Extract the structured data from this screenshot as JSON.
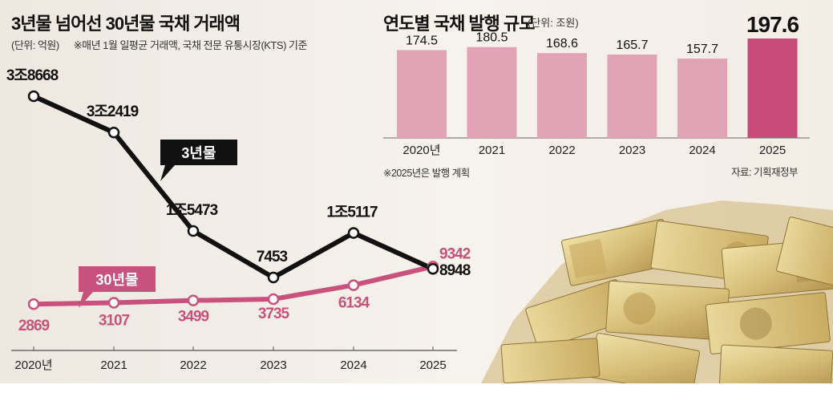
{
  "left_chart": {
    "title": "3년물 넘어선 30년물 국채 거래액",
    "unit_note": "(단위: 억원)",
    "basis_note": "※매년 1월 일평균 거래액, 국채 전문 유통시장(KTS) 기준"
  },
  "right_chart": {
    "title": "연도별 국채 발행 규모",
    "unit_note": "(단위: 조원)",
    "footnote": "※2025년은 발행 계획",
    "source": "자료: 기획재정부"
  },
  "colors": {
    "line_3yr": "#111111",
    "line_30yr": "#c8527d",
    "bar_normal": "#e2a3b6",
    "bar_highlight": "#c64b79"
  },
  "chart_data": [
    {
      "type": "line",
      "title": "3년물 넘어선 30년물 국채 거래액",
      "ylabel": "억원",
      "x": [
        "2020년",
        "2021",
        "2022",
        "2023",
        "2024",
        "2025"
      ],
      "series": [
        {
          "name": "3년물",
          "values": [
            38668,
            32419,
            15473,
            7453,
            15117,
            8948
          ],
          "labels": [
            "3조8668",
            "3조2419",
            "1조5473",
            "7453",
            "1조5117",
            "8948"
          ]
        },
        {
          "name": "30년물",
          "values": [
            2869,
            3107,
            3499,
            3735,
            6134,
            9342
          ],
          "labels": [
            "2869",
            "3107",
            "3499",
            "3735",
            "6134",
            "9342"
          ]
        }
      ]
    },
    {
      "type": "bar",
      "title": "연도별 국채 발행 규모",
      "ylabel": "조원",
      "categories": [
        "2020년",
        "2021",
        "2022",
        "2023",
        "2024",
        "2025"
      ],
      "values": [
        174.5,
        180.5,
        168.6,
        165.7,
        157.7,
        197.6
      ],
      "labels": [
        "174.5",
        "180.5",
        "168.6",
        "165.7",
        "157.7",
        "197.6"
      ],
      "highlight_index": 5
    }
  ]
}
